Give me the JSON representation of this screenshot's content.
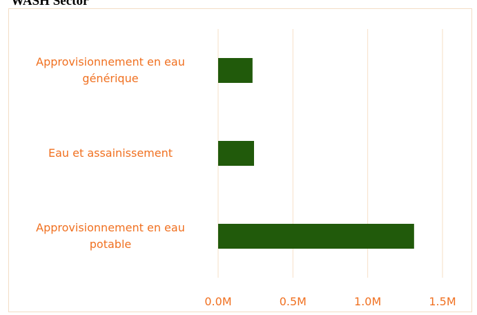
{
  "chart_data": {
    "type": "bar",
    "orientation": "horizontal",
    "title": "WASH Sector",
    "categories": [
      "Approvisionnement en eau générique",
      "Eau et assainissement",
      "Approvisionnement en eau potable"
    ],
    "values": [
      230000,
      240000,
      1310000
    ],
    "color": "#215a0b",
    "xlim": [
      0,
      1500000
    ],
    "xticks": [
      {
        "value": 0,
        "label": "0.0M"
      },
      {
        "value": 500000,
        "label": "0.5M"
      },
      {
        "value": 1000000,
        "label": "1.0M"
      },
      {
        "value": 1500000,
        "label": "1.5M"
      }
    ],
    "grid": true
  }
}
